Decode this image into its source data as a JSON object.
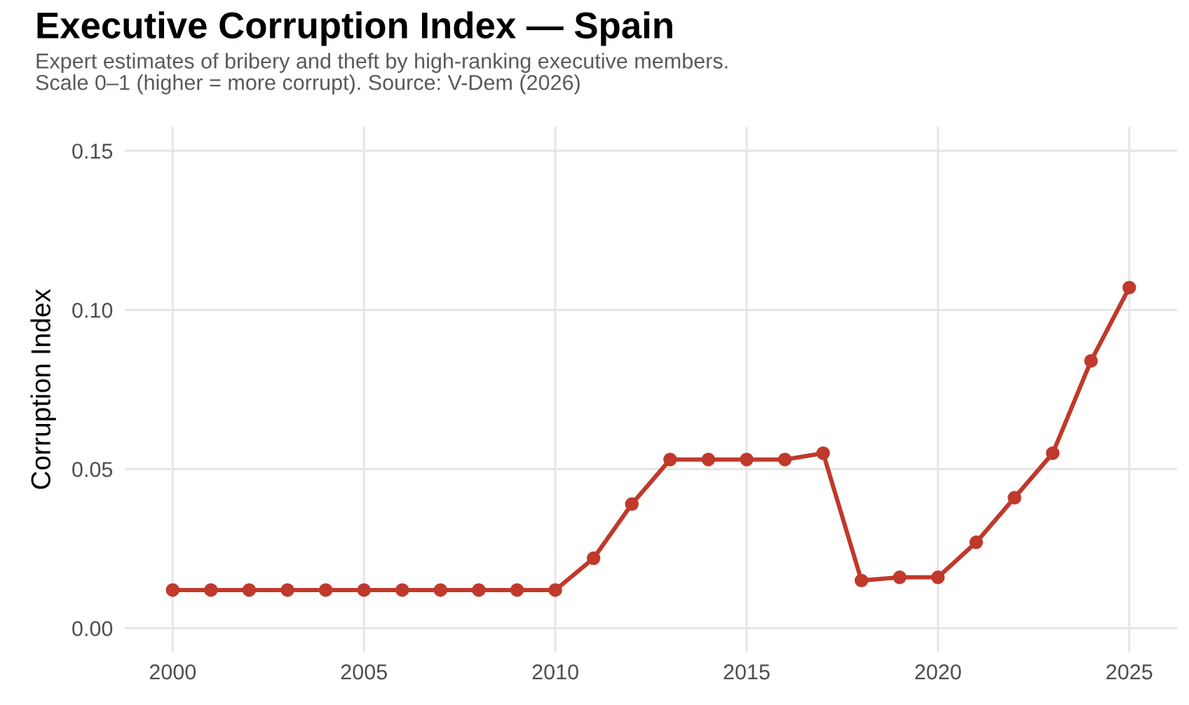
{
  "chart_data": {
    "type": "line",
    "title": "Executive Corruption Index — Spain",
    "subtitle": "Expert estimates of bribery and theft by high-ranking executive members.\nScale 0–1 (higher = more corrupt). Source: V-Dem (2026)",
    "ylabel": "Corruption Index",
    "x": [
      2000,
      2001,
      2002,
      2003,
      2004,
      2005,
      2006,
      2007,
      2008,
      2009,
      2010,
      2011,
      2012,
      2013,
      2014,
      2015,
      2016,
      2017,
      2018,
      2019,
      2020,
      2021,
      2022,
      2023,
      2024,
      2025
    ],
    "series": [
      {
        "color": "#c0392b",
        "values": [
          0.012,
          0.012,
          0.012,
          0.012,
          0.012,
          0.012,
          0.012,
          0.012,
          0.012,
          0.012,
          0.012,
          0.022,
          0.039,
          0.053,
          0.053,
          0.053,
          0.053,
          0.055,
          0.015,
          0.016,
          0.016,
          0.027,
          0.041,
          0.055,
          0.084,
          0.107
        ]
      }
    ],
    "xlim": [
      1998.75,
      2026.25
    ],
    "xticks": [
      2000,
      2005,
      2010,
      2015,
      2020,
      2025
    ],
    "ylim": [
      -0.0075,
      0.1575
    ],
    "yticks": [
      {
        "value": 0,
        "label": "0.00"
      },
      {
        "value": 0.05,
        "label": "0.05"
      },
      {
        "value": 0.1,
        "label": "0.10"
      },
      {
        "value": 0.15,
        "label": "0.15"
      }
    ],
    "grid": true,
    "marker": "circle",
    "line_style": "solid",
    "legend": false
  }
}
